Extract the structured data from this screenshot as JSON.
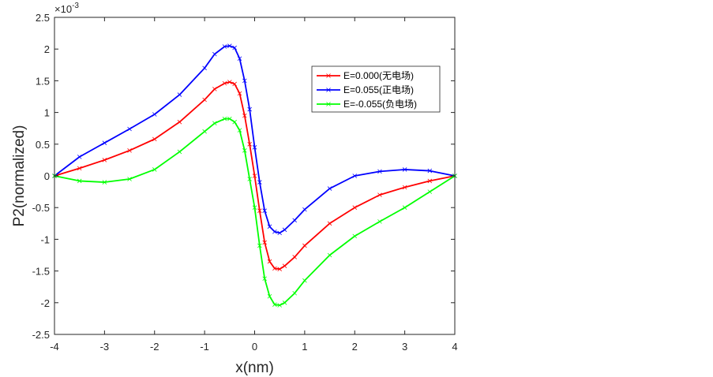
{
  "chart_data": {
    "type": "line",
    "title": "",
    "xlabel": "x(nm)",
    "ylabel": "P2(normalized)",
    "y_multiplier": "×10",
    "y_exponent": "-3",
    "xlim": [
      -4,
      4
    ],
    "ylim": [
      -2.5,
      2.5
    ],
    "xticks": [
      -4,
      -3,
      -2,
      -1,
      0,
      1,
      2,
      3,
      4
    ],
    "xtick_labels": [
      "-4",
      "-3",
      "-2",
      "-1",
      "0",
      "1",
      "2",
      "3",
      "4"
    ],
    "yticks": [
      -2.5,
      -2,
      -1.5,
      -1,
      -0.5,
      0,
      0.5,
      1,
      1.5,
      2,
      2.5
    ],
    "ytick_labels": [
      "-2.5",
      "-2",
      "-1.5",
      "-1",
      "-0.5",
      "0",
      "0.5",
      "1",
      "1.5",
      "2",
      "2.5"
    ],
    "grid": false,
    "legend_position": "top-right",
    "x": [
      -4,
      -3.5,
      -3,
      -2.5,
      -2,
      -1.5,
      -1,
      -0.8,
      -0.6,
      -0.5,
      -0.4,
      -0.3,
      -0.2,
      -0.1,
      0,
      0.1,
      0.2,
      0.3,
      0.4,
      0.5,
      0.6,
      0.8,
      1,
      1.5,
      2,
      2.5,
      3,
      3.5,
      4
    ],
    "series": [
      {
        "name": "E=0.000(无电场)",
        "color": "#ff0000",
        "values": [
          0,
          0.12,
          0.25,
          0.4,
          0.58,
          0.85,
          1.2,
          1.37,
          1.46,
          1.48,
          1.45,
          1.3,
          0.95,
          0.5,
          0,
          -0.55,
          -1.05,
          -1.35,
          -1.46,
          -1.47,
          -1.42,
          -1.28,
          -1.1,
          -0.75,
          -0.5,
          -0.3,
          -0.18,
          -0.08,
          0
        ]
      },
      {
        "name": "E=0.055(正电场)",
        "color": "#0000ff",
        "values": [
          0,
          0.3,
          0.52,
          0.74,
          0.97,
          1.28,
          1.7,
          1.92,
          2.04,
          2.05,
          2.02,
          1.85,
          1.5,
          1.05,
          0.45,
          -0.1,
          -0.55,
          -0.8,
          -0.88,
          -0.9,
          -0.85,
          -0.7,
          -0.53,
          -0.2,
          0.0,
          0.07,
          0.1,
          0.08,
          0
        ]
      },
      {
        "name": "E=-0.055(负电场)",
        "color": "#00ff00",
        "values": [
          0,
          -0.08,
          -0.1,
          -0.05,
          0.1,
          0.38,
          0.7,
          0.83,
          0.9,
          0.9,
          0.85,
          0.72,
          0.4,
          -0.05,
          -0.5,
          -1.1,
          -1.62,
          -1.9,
          -2.03,
          -2.04,
          -2.0,
          -1.85,
          -1.65,
          -1.25,
          -0.95,
          -0.72,
          -0.5,
          -0.25,
          0
        ]
      }
    ]
  }
}
